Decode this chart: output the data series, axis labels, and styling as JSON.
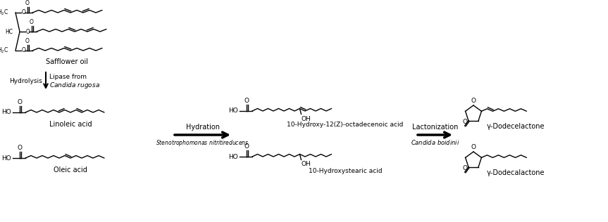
{
  "bg_color": "#ffffff",
  "fig_width": 8.63,
  "fig_height": 3.16,
  "dpi": 100,
  "safflower_oil_label": "Safflower oil",
  "linoleic_label": "Linoleic acid",
  "oleic_label": "Oleic acid",
  "hydration_label": "Hydration",
  "steno_label": "Stenotrophomonas nitritireducens",
  "hydroxy12_label": "10-Hydroxy-12(Z)-octadecenoic acid",
  "hydroxy_stearic_label": "10-Hydroxystearic acid",
  "lactonization_label": "Lactonization",
  "candida_b_label": "Candida boidinii",
  "gamma_dodece_label": "γ-Dodecelactone",
  "gamma_dodeca_label": "γ-Dodecalactone"
}
